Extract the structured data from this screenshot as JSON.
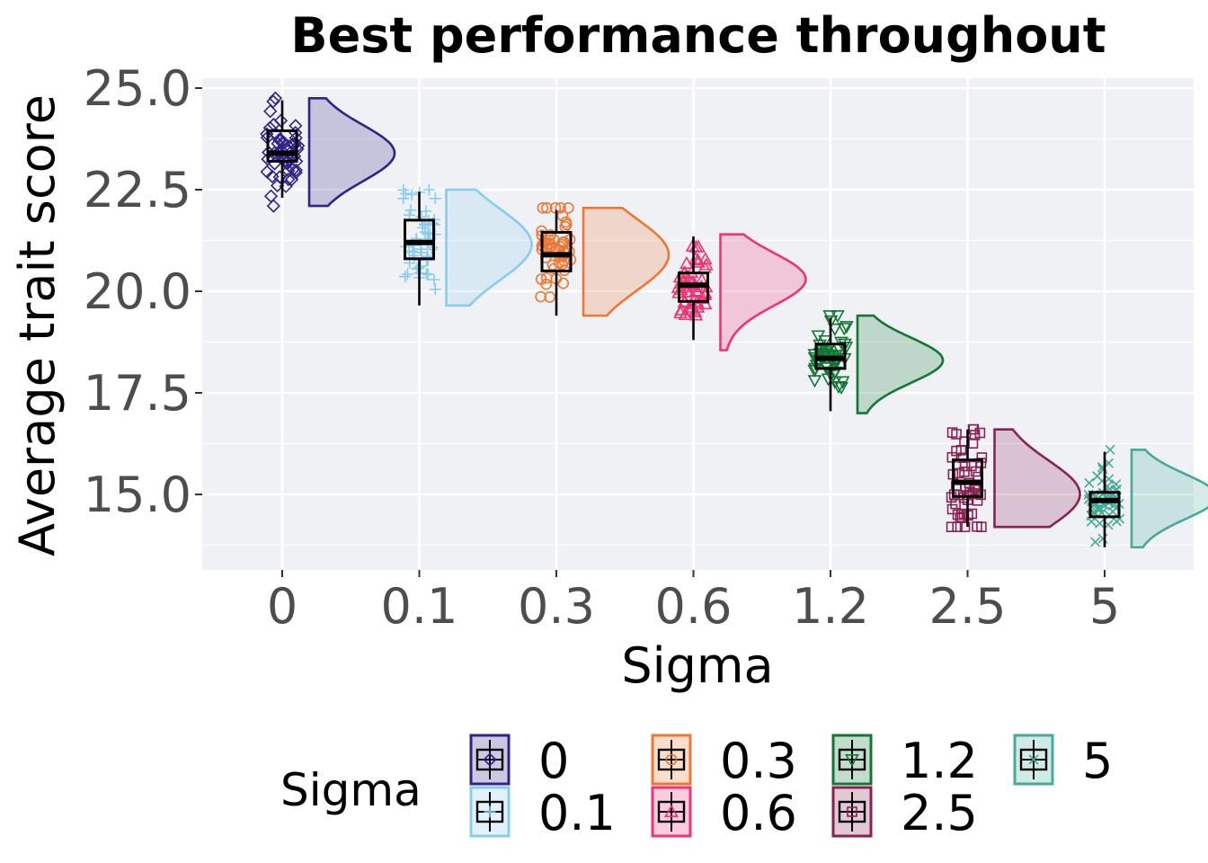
{
  "chart_data": {
    "type": "raincloud",
    "title": "Best performance throughout",
    "xlabel": "Sigma",
    "ylabel": "Average trait score",
    "ylim": [
      13.1,
      25.2
    ],
    "yticks": [
      15.0,
      17.5,
      20.0,
      22.5,
      25.0
    ],
    "ytick_labels": [
      "15.0",
      "17.5",
      "20.0",
      "22.5",
      "25.0"
    ],
    "categories": [
      "0",
      "0.1",
      "0.3",
      "0.6",
      "1.2",
      "2.5",
      "5"
    ],
    "grid": true,
    "legend": {
      "title": "Sigma",
      "position": "bottom"
    },
    "series": [
      {
        "name": "0",
        "color": "#332288",
        "marker": "diamond",
        "q1": 23.2,
        "median": 23.4,
        "q3": 23.95,
        "whisker_low": 22.3,
        "whisker_high": 24.7,
        "min": 22.1,
        "max": 24.75,
        "density_peak": 23.4
      },
      {
        "name": "0.1",
        "color": "#88ccee",
        "marker": "plus",
        "q1": 20.8,
        "median": 21.2,
        "q3": 21.75,
        "whisker_low": 19.65,
        "whisker_high": 22.45,
        "min": 19.65,
        "max": 22.5,
        "density_peak": 21.15
      },
      {
        "name": "0.3",
        "color": "#ee7733",
        "marker": "circle",
        "q1": 20.5,
        "median": 20.9,
        "q3": 21.45,
        "whisker_low": 19.4,
        "whisker_high": 22.0,
        "min": 19.4,
        "max": 22.05,
        "density_peak": 20.9
      },
      {
        "name": "0.6",
        "color": "#ee3377",
        "marker": "triangle-up",
        "q1": 19.75,
        "median": 20.15,
        "q3": 20.45,
        "whisker_low": 18.8,
        "whisker_high": 21.35,
        "min": 18.55,
        "max": 21.4,
        "density_peak": 20.3
      },
      {
        "name": "1.2",
        "color": "#117733",
        "marker": "triangle-down",
        "q1": 18.1,
        "median": 18.35,
        "q3": 18.7,
        "whisker_low": 17.05,
        "whisker_high": 19.35,
        "min": 17.0,
        "max": 19.4,
        "density_peak": 18.3
      },
      {
        "name": "2.5",
        "color": "#882255",
        "marker": "square",
        "q1": 14.95,
        "median": 15.3,
        "q3": 15.85,
        "whisker_low": 14.2,
        "whisker_high": 16.6,
        "min": 14.2,
        "max": 16.6,
        "density_peak": 15.0
      },
      {
        "name": "5",
        "color": "#44aa99",
        "marker": "cross",
        "q1": 14.45,
        "median": 14.85,
        "q3": 15.05,
        "whisker_low": 13.7,
        "whisker_high": 16.05,
        "min": 13.7,
        "max": 16.1,
        "density_peak": 14.95
      }
    ]
  },
  "colors": {
    "panel_background": "#f0f1f5",
    "grid": "#ffffff",
    "box": "#000000"
  }
}
